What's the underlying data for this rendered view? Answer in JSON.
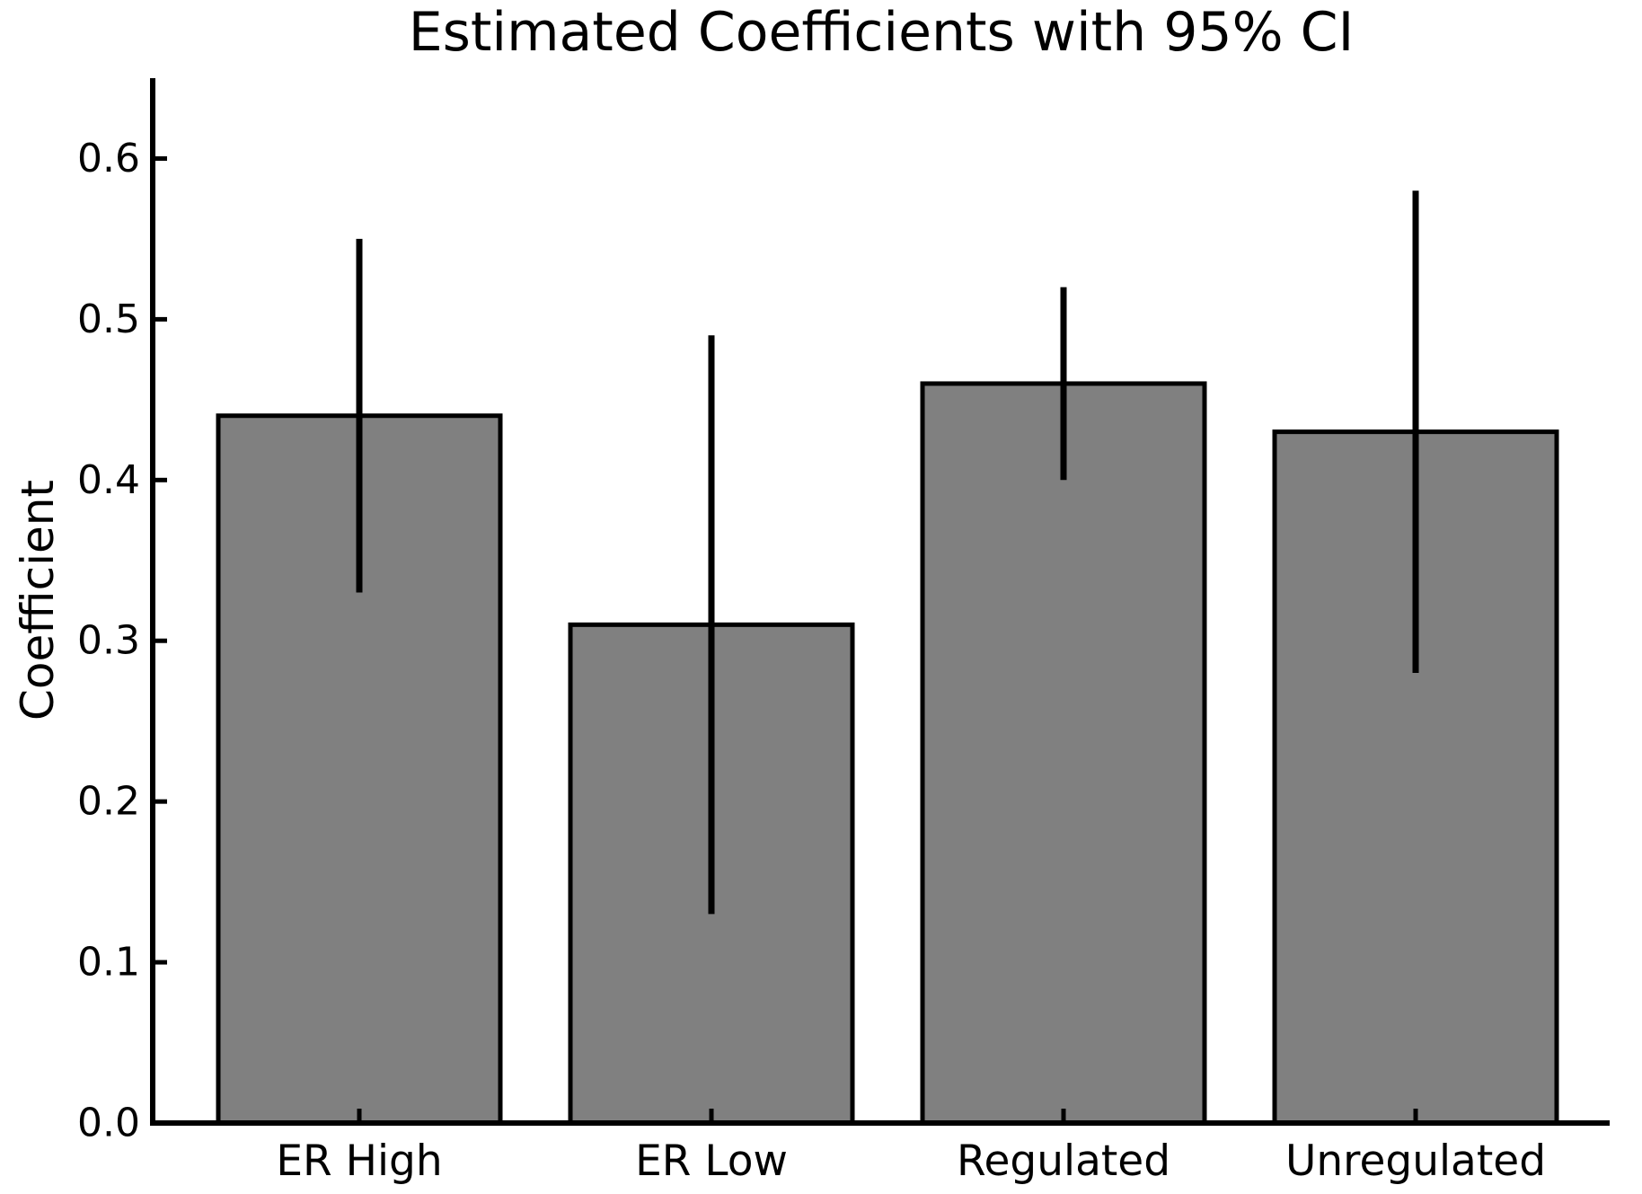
{
  "figure": {
    "background": "#ffffff",
    "text_color": "#000000"
  },
  "chart_data": {
    "type": "bar",
    "title": "Estimated Coefficients with 95% CI",
    "xlabel": "",
    "ylabel": "Coefficient",
    "ci_level": "95%",
    "categories": [
      "ER High",
      "ER Low",
      "Regulated",
      "Unregulated"
    ],
    "values": [
      0.44,
      0.31,
      0.46,
      0.43
    ],
    "ci_lower": [
      0.33,
      0.13,
      0.4,
      0.28
    ],
    "ci_upper": [
      0.55,
      0.49,
      0.52,
      0.58
    ],
    "ylim": [
      0,
      0.65
    ],
    "yticks": [
      0.0,
      0.1,
      0.2,
      0.3,
      0.4,
      0.5,
      0.6
    ],
    "ytick_labels": [
      "0.0",
      "0.1",
      "0.2",
      "0.3",
      "0.4",
      "0.5",
      "0.6"
    ],
    "grid": false,
    "legend": "none",
    "bar_color": "#808080",
    "bar_edge_color": "#000000",
    "error_color": "#000000",
    "axis_color": "#000000"
  }
}
